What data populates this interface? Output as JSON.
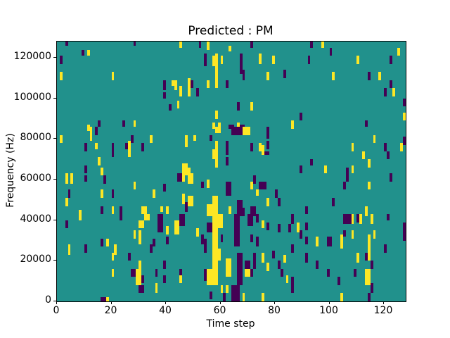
{
  "title": "Predicted : PM",
  "xlabel": "Time step",
  "ylabel": "Frequency (Hz)",
  "axes": {
    "x_ticks": [
      0,
      20,
      40,
      60,
      80,
      100,
      120
    ],
    "y_ticks": [
      0,
      20000,
      40000,
      60000,
      80000,
      100000,
      120000
    ]
  },
  "colors": {
    "background": "#ffffff",
    "plot_background": "#21918c",
    "value_low": "#440154",
    "value_high": "#fde725",
    "axis": "#000000"
  },
  "chart_data": {
    "type": "heatmap",
    "title": "Predicted : PM",
    "xlabel": "Time step",
    "ylabel": "Frequency (Hz)",
    "xlim": [
      0,
      128
    ],
    "ylim": [
      0,
      128000
    ],
    "grid_size": [
      128,
      128
    ],
    "colormap": "viridis-3-level",
    "background_color": "#21918c",
    "palette": [
      "#440154",
      "#fde725"
    ],
    "legend": "none",
    "grid": false,
    "cells_format": "[col, row_start, row_end, paletteIndex, colspan(optional, default 1)] ; col = time step from left, rows = 1000 Hz bins from bottom, paletteIndex 0=dark purple, 1=yellow",
    "cells": [
      [
        3,
        126,
        127,
        0
      ],
      [
        28,
        126,
        127,
        0
      ],
      [
        9,
        121,
        123,
        0
      ],
      [
        11,
        121,
        123,
        1
      ],
      [
        1,
        117,
        120,
        0
      ],
      [
        1,
        109,
        112,
        1
      ],
      [
        20,
        109,
        112,
        1
      ],
      [
        39,
        104,
        108,
        0
      ],
      [
        42,
        106,
        108,
        1
      ],
      [
        39,
        100,
        102,
        0
      ],
      [
        41,
        94,
        96,
        0
      ],
      [
        15,
        86,
        88,
        0
      ],
      [
        24,
        86,
        88,
        0
      ],
      [
        28,
        86,
        88,
        1
      ],
      [
        11,
        84,
        86,
        1
      ],
      [
        45,
        125,
        127,
        1
      ],
      [
        52,
        125,
        127,
        0
      ],
      [
        55,
        124,
        127,
        1
      ],
      [
        71,
        125,
        127,
        0
      ],
      [
        63,
        123,
        125,
        1
      ],
      [
        54,
        116,
        121,
        0
      ],
      [
        57,
        116,
        120,
        1
      ],
      [
        60,
        117,
        120,
        1
      ],
      [
        58,
        105,
        121,
        1
      ],
      [
        67,
        112,
        121,
        0
      ],
      [
        68,
        109,
        113,
        0
      ],
      [
        74,
        117,
        121,
        1
      ],
      [
        79,
        117,
        120,
        1
      ],
      [
        77,
        109,
        112,
        1
      ],
      [
        83,
        110,
        113,
        0
      ],
      [
        43,
        104,
        108,
        1
      ],
      [
        48,
        105,
        109,
        1
      ],
      [
        49,
        105,
        108,
        0
      ],
      [
        55,
        105,
        108,
        1
      ],
      [
        62,
        105,
        108,
        0
      ],
      [
        45,
        101,
        105,
        1
      ],
      [
        48,
        101,
        104,
        1
      ],
      [
        51,
        101,
        104,
        0
      ],
      [
        44,
        95,
        98,
        1
      ],
      [
        66,
        94,
        97,
        0
      ],
      [
        71,
        94,
        97,
        1
      ],
      [
        58,
        90,
        93,
        1
      ],
      [
        57,
        85,
        87,
        1
      ],
      [
        59,
        85,
        87,
        1
      ],
      [
        63,
        85,
        86,
        0,
        2
      ],
      [
        66,
        85,
        87,
        1
      ],
      [
        67,
        85,
        86,
        0,
        2
      ],
      [
        93,
        125,
        127,
        0
      ],
      [
        97,
        125,
        127,
        1
      ],
      [
        100,
        121,
        124,
        0
      ],
      [
        125,
        121,
        124,
        1
      ],
      [
        92,
        117,
        120,
        0
      ],
      [
        110,
        117,
        120,
        1
      ],
      [
        122,
        117,
        120,
        0
      ],
      [
        101,
        109,
        112,
        1
      ],
      [
        114,
        109,
        112,
        0
      ],
      [
        118,
        109,
        112,
        1
      ],
      [
        122,
        105,
        108,
        0
      ],
      [
        120,
        101,
        104,
        0
      ],
      [
        123,
        101,
        104,
        1
      ],
      [
        127,
        96,
        99,
        0
      ],
      [
        89,
        89,
        92,
        0
      ],
      [
        127,
        89,
        92,
        1
      ],
      [
        113,
        86,
        88,
        0
      ],
      [
        86,
        85,
        88,
        1
      ],
      [
        12,
        79,
        85,
        1
      ],
      [
        14,
        82,
        85,
        0
      ],
      [
        1,
        78,
        81,
        1
      ],
      [
        10,
        74,
        77,
        0
      ],
      [
        14,
        75,
        77,
        1
      ],
      [
        20,
        74,
        77,
        0
      ],
      [
        25,
        75,
        77,
        0
      ],
      [
        27,
        78,
        81,
        0
      ],
      [
        26,
        71,
        78,
        1
      ],
      [
        31,
        74,
        77,
        0
      ],
      [
        34,
        78,
        81,
        1
      ],
      [
        20,
        71,
        73,
        0
      ],
      [
        15,
        67,
        70,
        1
      ],
      [
        10,
        63,
        66,
        0
      ],
      [
        16,
        62,
        65,
        1
      ],
      [
        10,
        59,
        61,
        0
      ],
      [
        3,
        58,
        62,
        1
      ],
      [
        5,
        58,
        62,
        1
      ],
      [
        17,
        58,
        61,
        0
      ],
      [
        28,
        55,
        58,
        1
      ],
      [
        39,
        54,
        57,
        0
      ],
      [
        4,
        51,
        54,
        0
      ],
      [
        3,
        47,
        50,
        1
      ],
      [
        16,
        51,
        54,
        1
      ],
      [
        20,
        51,
        54,
        0
      ],
      [
        35,
        51,
        54,
        1
      ],
      [
        16,
        43,
        46,
        0
      ],
      [
        20,
        43,
        46,
        1
      ],
      [
        23,
        43,
        46,
        0
      ],
      [
        31,
        43,
        46,
        1,
        2
      ],
      [
        38,
        44,
        46,
        1
      ],
      [
        40,
        43,
        46,
        1
      ],
      [
        8,
        42,
        44,
        1
      ],
      [
        64,
        82,
        85,
        0,
        4
      ],
      [
        68,
        82,
        85,
        1,
        3
      ],
      [
        58,
        83,
        85,
        1,
        2
      ],
      [
        47,
        76,
        81,
        1
      ],
      [
        50,
        79,
        81,
        1
      ],
      [
        56,
        79,
        81,
        0
      ],
      [
        58,
        66,
        78,
        1
      ],
      [
        57,
        70,
        74,
        1
      ],
      [
        62,
        72,
        78,
        0
      ],
      [
        71,
        74,
        77,
        0
      ],
      [
        74,
        74,
        77,
        1
      ],
      [
        75,
        72,
        76,
        1
      ],
      [
        76,
        72,
        73,
        0,
        2
      ],
      [
        77,
        75,
        78,
        0
      ],
      [
        77,
        80,
        85,
        0
      ],
      [
        62,
        67,
        70,
        0
      ],
      [
        46,
        62,
        67,
        1,
        2
      ],
      [
        48,
        62,
        65,
        1
      ],
      [
        44,
        59,
        62,
        0,
        2
      ],
      [
        46,
        59,
        62,
        1
      ],
      [
        48,
        58,
        62,
        1,
        2
      ],
      [
        53,
        56,
        58,
        0
      ],
      [
        55,
        56,
        59,
        1
      ],
      [
        62,
        52,
        58,
        0,
        2
      ],
      [
        71,
        55,
        58,
        1
      ],
      [
        72,
        58,
        61,
        0
      ],
      [
        74,
        55,
        58,
        0,
        3
      ],
      [
        73,
        52,
        54,
        1
      ],
      [
        80,
        51,
        54,
        0
      ],
      [
        46,
        48,
        52,
        1
      ],
      [
        48,
        47,
        51,
        1,
        2
      ],
      [
        47,
        44,
        48,
        0
      ],
      [
        55,
        42,
        47,
        1,
        2
      ],
      [
        57,
        42,
        51,
        1,
        2
      ],
      [
        66,
        46,
        49,
        0,
        2
      ],
      [
        63,
        43,
        46,
        1
      ],
      [
        66,
        42,
        45,
        0,
        3
      ],
      [
        71,
        42,
        46,
        0,
        2
      ],
      [
        77,
        47,
        50,
        1
      ],
      [
        81,
        47,
        50,
        0
      ],
      [
        116,
        78,
        81,
        1
      ],
      [
        127,
        77,
        80,
        0
      ],
      [
        108,
        74,
        77,
        1
      ],
      [
        120,
        74,
        77,
        0
      ],
      [
        126,
        74,
        77,
        1
      ],
      [
        112,
        70,
        73,
        1
      ],
      [
        121,
        70,
        73,
        0
      ],
      [
        93,
        67,
        69,
        0
      ],
      [
        114,
        66,
        69,
        1
      ],
      [
        89,
        63,
        66,
        0
      ],
      [
        98,
        63,
        66,
        1
      ],
      [
        106,
        59,
        65,
        0
      ],
      [
        108,
        63,
        66,
        1
      ],
      [
        122,
        59,
        62,
        0
      ],
      [
        105,
        55,
        58,
        0
      ],
      [
        114,
        55,
        58,
        1
      ],
      [
        101,
        47,
        50,
        0
      ],
      [
        91,
        43,
        46,
        0
      ],
      [
        113,
        42,
        46,
        1
      ],
      [
        8,
        40,
        42,
        1
      ],
      [
        23,
        40,
        42,
        0
      ],
      [
        32,
        40,
        42,
        1,
        2
      ],
      [
        3,
        36,
        39,
        0
      ],
      [
        30,
        36,
        39,
        1,
        2
      ],
      [
        37,
        34,
        42,
        0,
        2
      ],
      [
        40,
        33,
        36,
        1
      ],
      [
        28,
        31,
        34,
        1
      ],
      [
        30,
        28,
        34,
        1
      ],
      [
        16,
        27,
        30,
        0
      ],
      [
        18,
        27,
        30,
        1
      ],
      [
        35,
        27,
        30,
        0
      ],
      [
        40,
        28,
        31,
        0
      ],
      [
        4,
        23,
        27,
        1
      ],
      [
        10,
        24,
        27,
        0
      ],
      [
        21,
        23,
        27,
        1
      ],
      [
        34,
        24,
        27,
        0
      ],
      [
        20,
        20,
        23,
        1
      ],
      [
        26,
        20,
        23,
        0
      ],
      [
        30,
        15,
        19,
        1
      ],
      [
        39,
        16,
        19,
        0
      ],
      [
        20,
        12,
        15,
        1
      ],
      [
        27,
        12,
        15,
        0,
        2
      ],
      [
        29,
        8,
        15,
        1,
        2
      ],
      [
        31,
        9,
        12,
        0
      ],
      [
        36,
        12,
        15,
        0
      ],
      [
        39,
        9,
        12,
        0
      ],
      [
        36,
        4,
        8,
        1
      ],
      [
        30,
        4,
        7,
        0,
        2
      ],
      [
        16,
        0,
        1,
        0,
        2
      ],
      [
        18,
        0,
        1,
        1
      ],
      [
        45,
        37,
        42,
        0,
        2
      ],
      [
        43,
        33,
        39,
        1,
        2
      ],
      [
        51,
        32,
        35,
        1
      ],
      [
        55,
        34,
        38,
        0,
        2
      ],
      [
        57,
        8,
        42,
        1,
        2
      ],
      [
        59,
        36,
        42,
        1,
        2
      ],
      [
        59,
        20,
        25,
        1
      ],
      [
        55,
        8,
        15,
        1,
        2
      ],
      [
        62,
        12,
        20,
        1,
        2
      ],
      [
        62,
        4,
        7,
        1
      ],
      [
        60,
        4,
        7,
        1
      ],
      [
        53,
        28,
        32,
        0
      ],
      [
        54,
        24,
        30,
        0
      ],
      [
        54,
        10,
        15,
        0
      ],
      [
        65,
        27,
        42,
        0,
        2
      ],
      [
        66,
        8,
        23,
        0,
        2
      ],
      [
        64,
        0,
        7,
        0,
        3
      ],
      [
        70,
        37,
        42,
        0,
        2
      ],
      [
        73,
        39,
        42,
        0
      ],
      [
        75,
        36,
        39,
        1
      ],
      [
        77,
        35,
        38,
        0
      ],
      [
        81,
        34,
        37,
        0
      ],
      [
        85,
        34,
        37,
        0
      ],
      [
        60,
        29,
        32,
        0
      ],
      [
        71,
        29,
        32,
        0
      ],
      [
        73,
        27,
        31,
        0
      ],
      [
        69,
        16,
        19,
        0,
        2
      ],
      [
        69,
        12,
        15,
        1,
        2
      ],
      [
        71,
        12,
        15,
        0
      ],
      [
        72,
        16,
        23,
        0
      ],
      [
        75,
        19,
        23,
        1
      ],
      [
        79,
        21,
        24,
        0
      ],
      [
        45,
        12,
        15,
        0
      ],
      [
        45,
        9,
        12,
        1
      ],
      [
        56,
        1,
        4,
        0
      ],
      [
        61,
        0,
        3,
        0
      ],
      [
        68,
        0,
        3,
        1
      ],
      [
        75,
        0,
        3,
        1
      ],
      [
        83,
        19,
        22,
        1
      ],
      [
        82,
        12,
        15,
        0
      ],
      [
        84,
        9,
        12,
        1
      ],
      [
        77,
        15,
        18,
        1
      ],
      [
        81,
        16,
        19,
        0
      ],
      [
        86,
        38,
        42,
        0
      ],
      [
        105,
        38,
        42,
        0,
        3
      ],
      [
        108,
        38,
        42,
        1
      ],
      [
        110,
        39,
        42,
        0
      ],
      [
        111,
        38,
        42,
        1
      ],
      [
        115,
        38,
        42,
        1
      ],
      [
        121,
        40,
        42,
        0
      ],
      [
        88,
        34,
        38,
        1
      ],
      [
        91,
        35,
        38,
        0
      ],
      [
        127,
        30,
        38,
        0
      ],
      [
        89,
        31,
        34,
        0
      ],
      [
        91,
        28,
        31,
        0
      ],
      [
        95,
        27,
        31,
        1
      ],
      [
        99,
        27,
        31,
        0,
        2
      ],
      [
        104,
        26,
        32,
        1
      ],
      [
        108,
        31,
        34,
        1
      ],
      [
        105,
        32,
        34,
        0
      ],
      [
        116,
        31,
        34,
        1
      ],
      [
        114,
        20,
        32,
        1
      ],
      [
        86,
        24,
        27,
        0
      ],
      [
        120,
        24,
        27,
        0
      ],
      [
        91,
        19,
        23,
        0
      ],
      [
        110,
        19,
        23,
        1
      ],
      [
        113,
        20,
        23,
        0
      ],
      [
        95,
        16,
        19,
        0
      ],
      [
        115,
        16,
        19,
        0
      ],
      [
        99,
        12,
        15,
        0
      ],
      [
        109,
        12,
        15,
        0
      ],
      [
        113,
        8,
        15,
        1,
        2
      ],
      [
        103,
        8,
        11,
        0
      ],
      [
        86,
        4,
        11,
        0
      ],
      [
        115,
        4,
        8,
        0
      ],
      [
        104,
        0,
        3,
        1
      ],
      [
        114,
        0,
        3,
        0
      ]
    ]
  }
}
